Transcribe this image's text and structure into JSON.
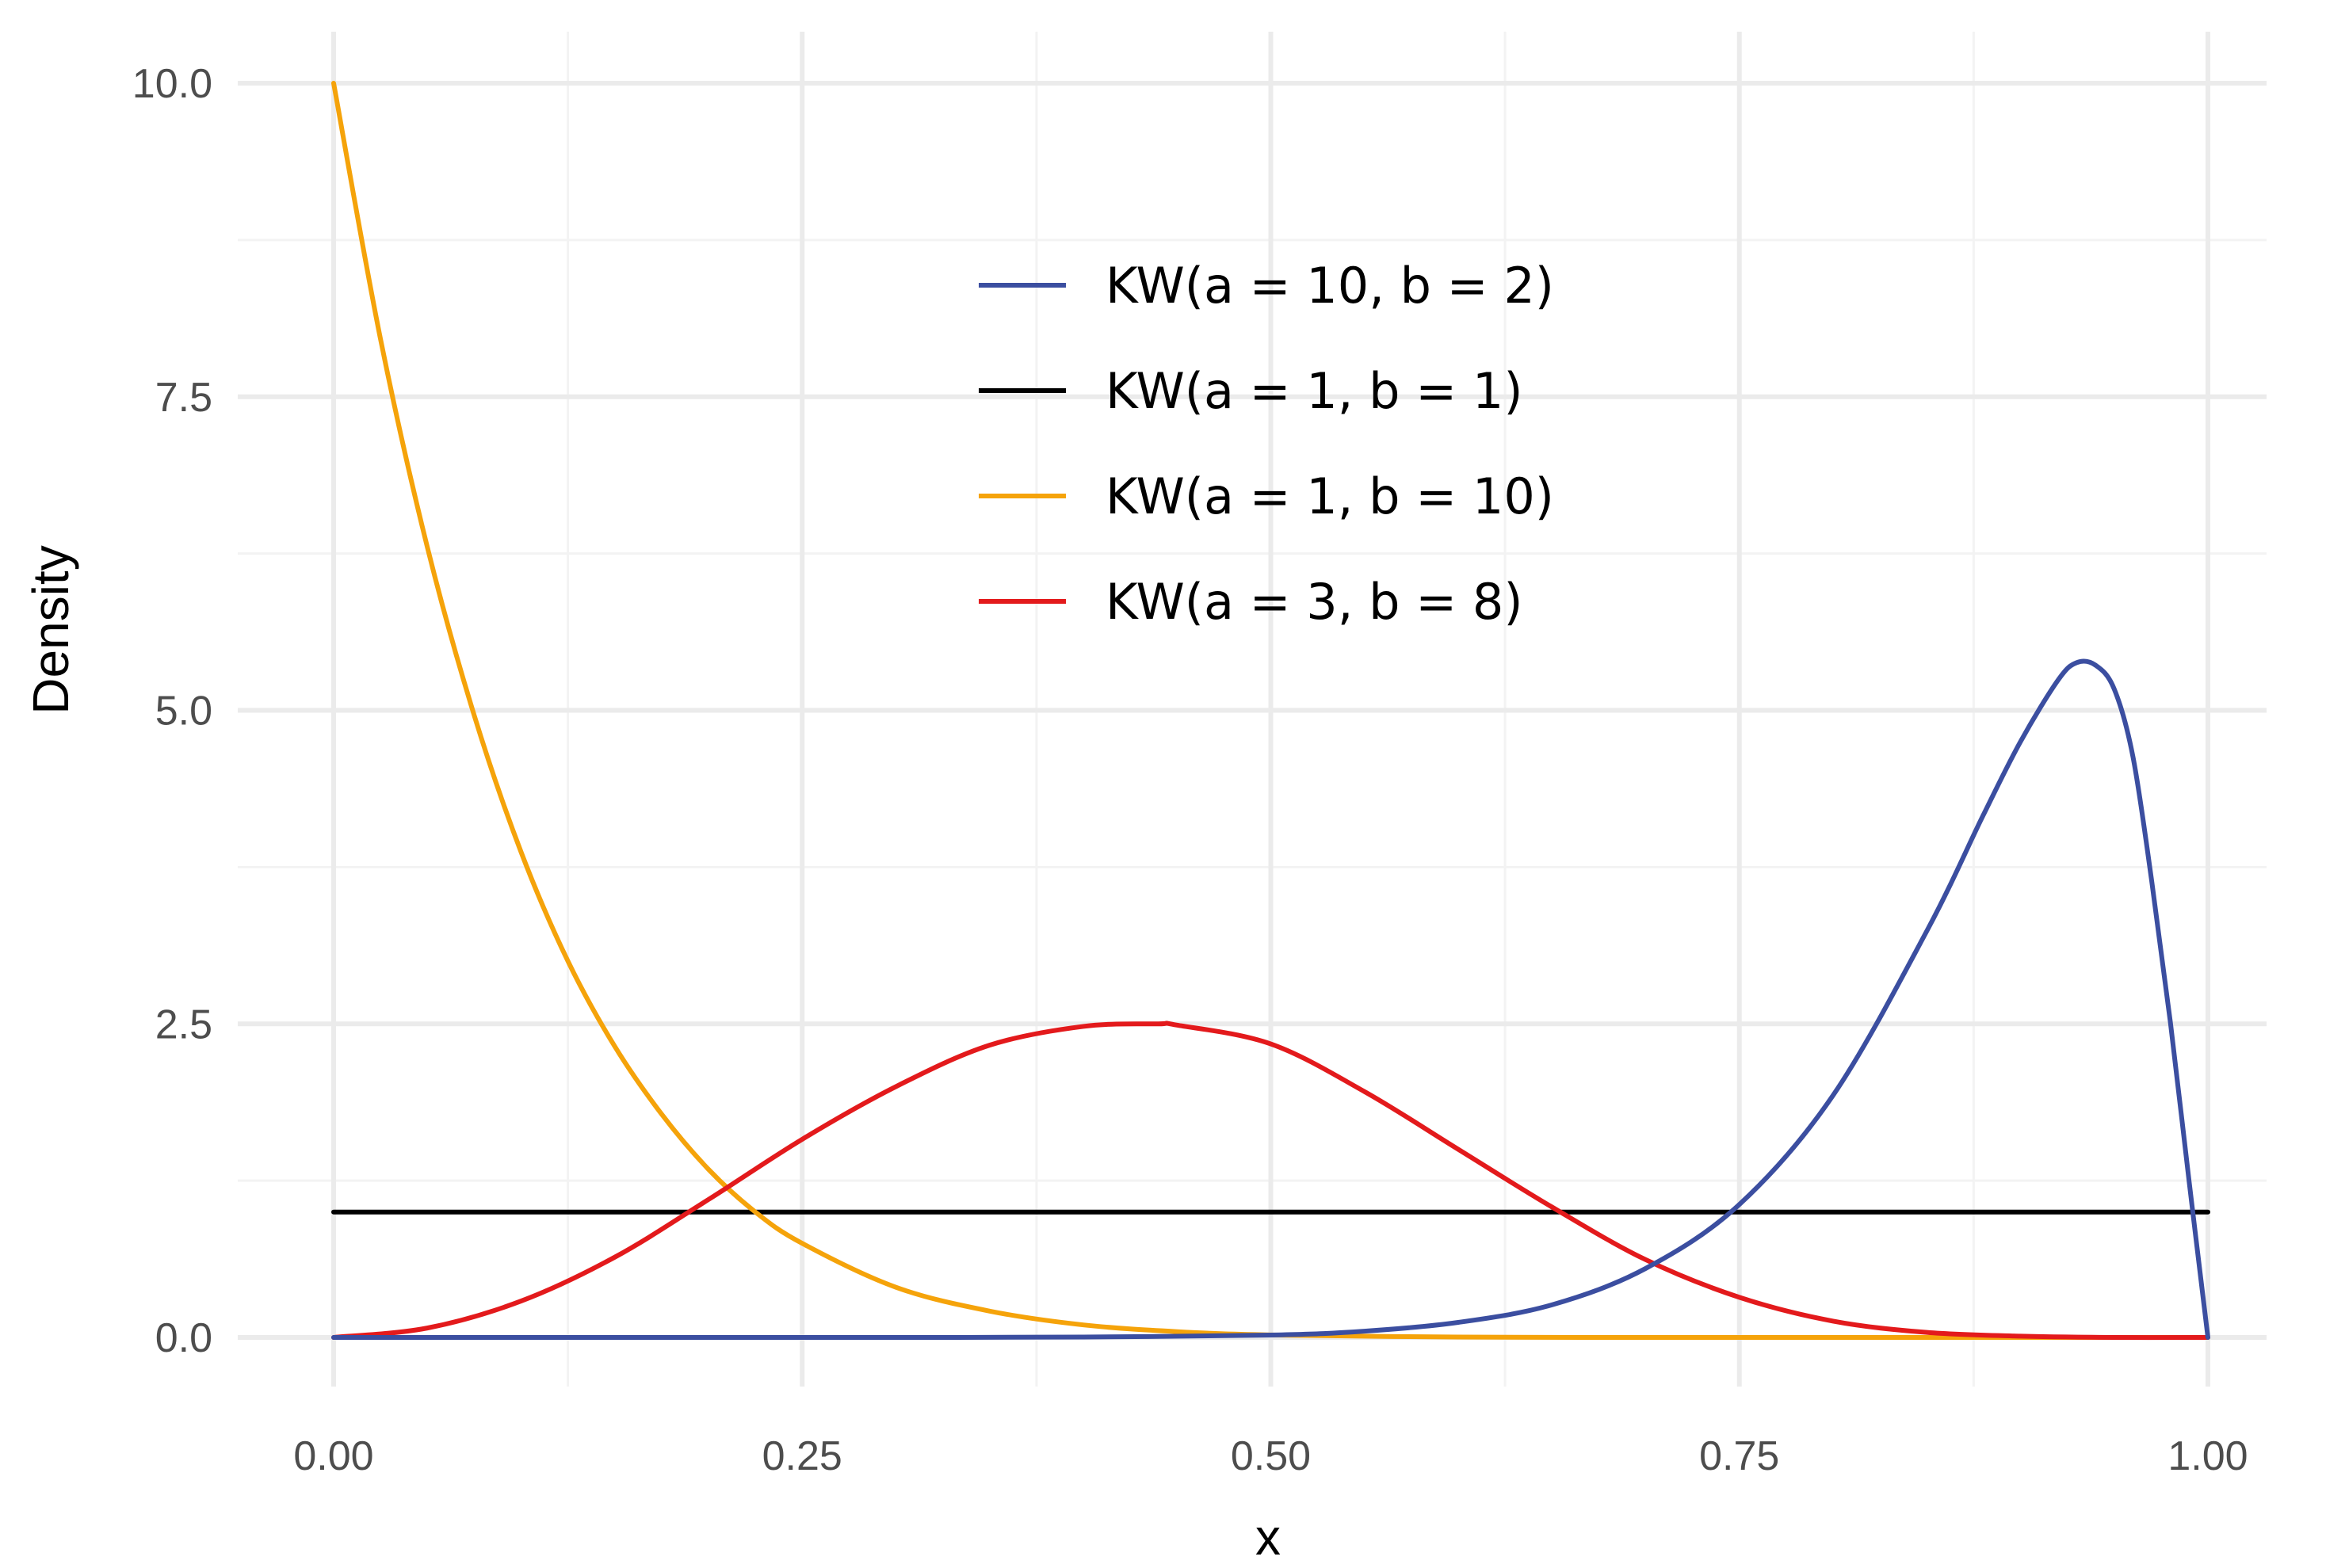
{
  "chart_data": {
    "type": "line",
    "title": "",
    "xlabel": "x",
    "ylabel": "Density",
    "xlim": [
      0,
      1
    ],
    "ylim": [
      0,
      10
    ],
    "x_ticks": [
      "0.00",
      "0.25",
      "0.50",
      "0.75",
      "1.00"
    ],
    "y_ticks": [
      "0.0",
      "2.5",
      "5.0",
      "7.5",
      "10.0"
    ],
    "grid": true,
    "legend_position": "inside-top-center",
    "series": [
      {
        "name": "KW(a = 10, b = 2)",
        "color": "#3b4ea0",
        "x": [
          0,
          0.1,
          0.2,
          0.3,
          0.4,
          0.5,
          0.55,
          0.6,
          0.65,
          0.7,
          0.75,
          0.8,
          0.85,
          0.88,
          0.9,
          0.92,
          0.93,
          0.94,
          0.95,
          0.96,
          0.97,
          0.98,
          0.99,
          1.0
        ],
        "y": [
          0,
          0,
          0,
          0,
          0.003,
          0.019,
          0.05,
          0.12,
          0.26,
          0.55,
          1.06,
          1.93,
          3.24,
          4.16,
          4.75,
          5.24,
          5.38,
          5.36,
          5.17,
          4.63,
          3.64,
          2.51,
          1.24,
          0
        ]
      },
      {
        "name": "KW(a = 1, b = 1)",
        "color": "#000000",
        "x": [
          0,
          1
        ],
        "y": [
          1,
          1
        ]
      },
      {
        "name": "KW(a = 1, b = 10)",
        "color": "#f5a30a",
        "x": [
          0,
          0.025,
          0.05,
          0.075,
          0.1,
          0.125,
          0.15,
          0.175,
          0.2,
          0.225,
          0.25,
          0.3,
          0.35,
          0.4,
          0.45,
          0.5,
          0.6,
          0.7,
          0.8,
          0.9,
          1.0
        ],
        "y": [
          10,
          7.96,
          6.3,
          4.96,
          3.87,
          3.0,
          2.32,
          1.78,
          1.34,
          1.0,
          0.75,
          0.4,
          0.21,
          0.1,
          0.046,
          0.02,
          0.003,
          0,
          0,
          0,
          0
        ]
      },
      {
        "name": "KW(a = 3, b = 8)",
        "color": "#e31a1c",
        "x": [
          0,
          0.05,
          0.1,
          0.15,
          0.2,
          0.25,
          0.3,
          0.35,
          0.4,
          0.44,
          0.45,
          0.5,
          0.55,
          0.6,
          0.65,
          0.7,
          0.75,
          0.8,
          0.85,
          0.9,
          0.95,
          1.0
        ],
        "y": [
          0,
          0.075,
          0.29,
          0.64,
          1.1,
          1.58,
          2.0,
          2.33,
          2.48,
          2.5,
          2.49,
          2.34,
          1.96,
          1.5,
          1.04,
          0.62,
          0.32,
          0.13,
          0.04,
          0.01,
          0,
          0
        ]
      }
    ]
  }
}
